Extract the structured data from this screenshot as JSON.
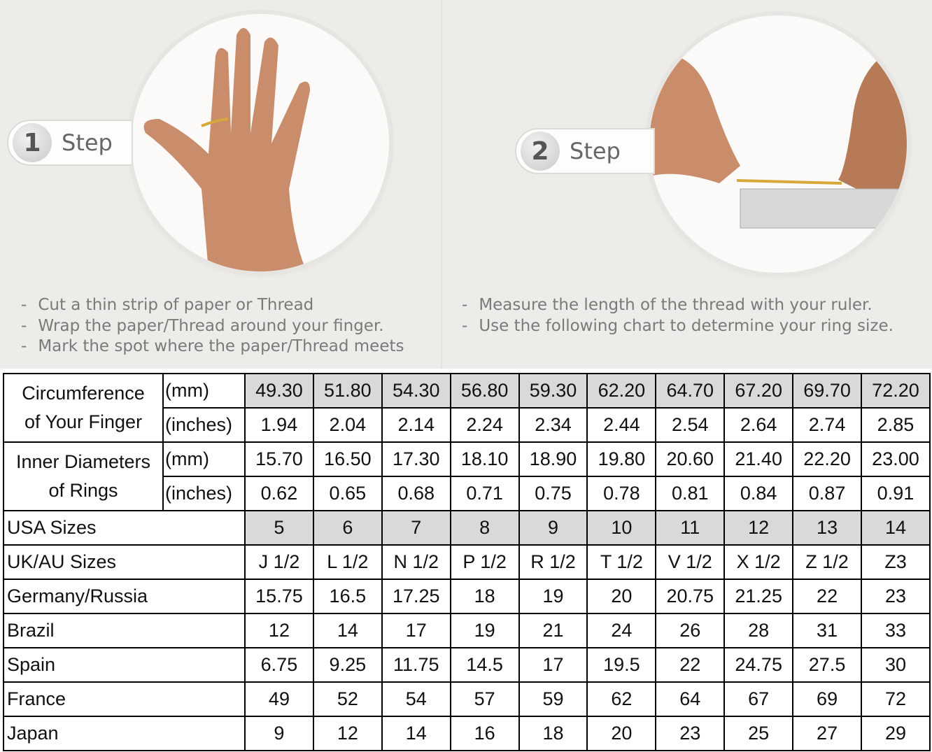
{
  "step1": {
    "number": "1",
    "label": "Step",
    "instructions": [
      "Cut a thin strip of paper or Thread",
      "Wrap the paper/Thread around your finger.",
      "Mark the spot where the paper/Thread meets"
    ]
  },
  "step2": {
    "number": "2",
    "label": "Step",
    "instructions": [
      "Measure the length of the thread with your ruler.",
      "Use the following chart to determine your ring size."
    ]
  },
  "table": {
    "circumference": {
      "label": [
        "Circumference",
        "of Your Finger"
      ],
      "mm_unit": "(mm)",
      "in_unit": "(inches)",
      "mm": [
        "49.30",
        "51.80",
        "54.30",
        "56.80",
        "59.30",
        "62.20",
        "64.70",
        "67.20",
        "69.70",
        "72.20"
      ],
      "inches": [
        "1.94",
        "2.04",
        "2.14",
        "2.24",
        "2.34",
        "2.44",
        "2.54",
        "2.64",
        "2.74",
        "2.85"
      ]
    },
    "diameter": {
      "label": [
        "Inner Diameters",
        "of Rings"
      ],
      "mm_unit": "(mm)",
      "in_unit": "(inches)",
      "mm": [
        "15.70",
        "16.50",
        "17.30",
        "18.10",
        "18.90",
        "19.80",
        "20.60",
        "21.40",
        "22.20",
        "23.00"
      ],
      "inches": [
        "0.62",
        "0.65",
        "0.68",
        "0.71",
        "0.75",
        "0.78",
        "0.81",
        "0.84",
        "0.87",
        "0.91"
      ]
    },
    "rows": [
      {
        "label": "USA Sizes",
        "shaded": true,
        "values": [
          "5",
          "6",
          "7",
          "8",
          "9",
          "10",
          "11",
          "12",
          "13",
          "14"
        ]
      },
      {
        "label": "UK/AU Sizes",
        "values": [
          "J 1/2",
          "L 1/2",
          "N 1/2",
          "P 1/2",
          "R 1/2",
          "T 1/2",
          "V 1/2",
          "X 1/2",
          "Z 1/2",
          "Z3"
        ]
      },
      {
        "label": "Germany/Russia",
        "values": [
          "15.75",
          "16.5",
          "17.25",
          "18",
          "19",
          "20",
          "20.75",
          "21.25",
          "22",
          "23"
        ]
      },
      {
        "label": "Brazil",
        "values": [
          "12",
          "14",
          "17",
          "19",
          "21",
          "24",
          "26",
          "28",
          "31",
          "33"
        ]
      },
      {
        "label": "Spain",
        "values": [
          "6.75",
          "9.25",
          "11.75",
          "14.5",
          "17",
          "19.5",
          "22",
          "24.75",
          "27.5",
          "30"
        ]
      },
      {
        "label": "France",
        "values": [
          "49",
          "52",
          "54",
          "57",
          "59",
          "62",
          "64",
          "67",
          "69",
          "72"
        ]
      },
      {
        "label": "Japan",
        "values": [
          "9",
          "12",
          "14",
          "16",
          "18",
          "20",
          "23",
          "25",
          "27",
          "29"
        ]
      }
    ]
  },
  "colors": {
    "shade": "#d9d9d9",
    "background": "#edece8"
  }
}
